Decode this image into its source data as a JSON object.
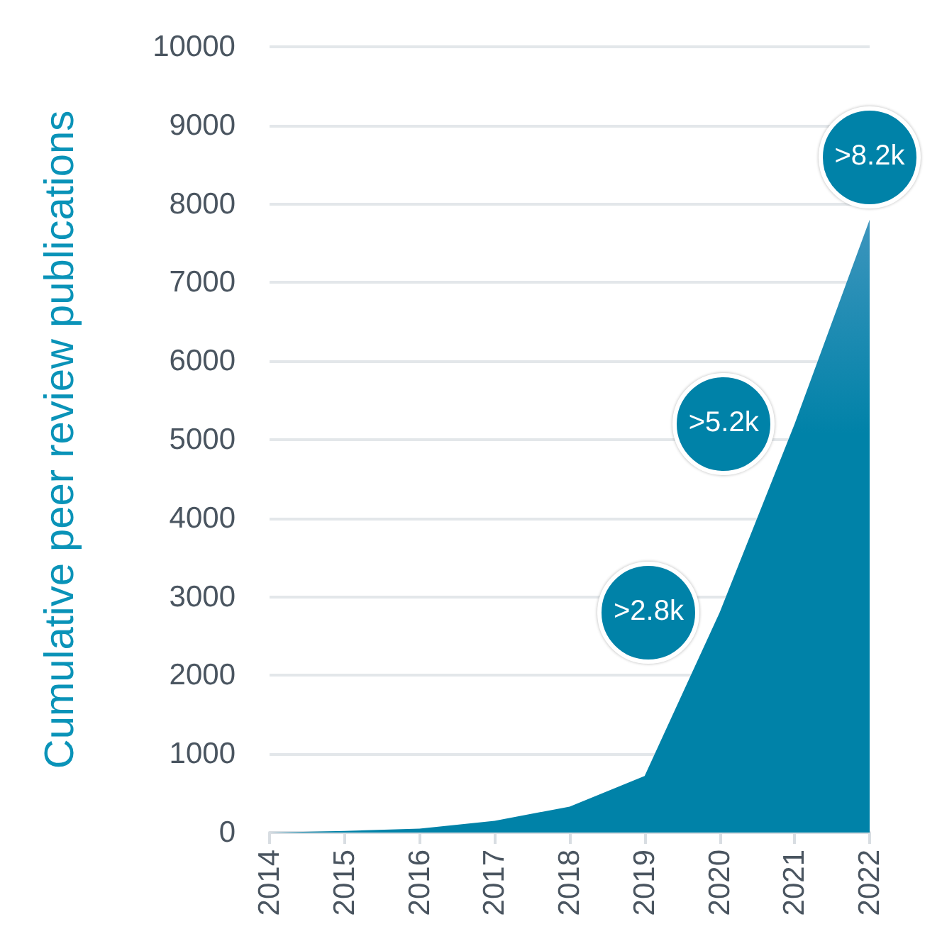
{
  "chart_data": {
    "type": "area",
    "ylabel": "Cumulative peer review publications",
    "categories": [
      "2014",
      "2015",
      "2016",
      "2017",
      "2018",
      "2019",
      "2020",
      "2021",
      "2022"
    ],
    "series": [
      {
        "color": "#0082a8",
        "values": [
          0,
          20,
          50,
          150,
          330,
          720,
          2800,
          5200,
          7800
        ]
      }
    ],
    "ylim": [
      0,
      10000
    ],
    "yticks": [
      0,
      1000,
      2000,
      3000,
      4000,
      5000,
      6000,
      7000,
      8000,
      9000,
      10000
    ],
    "grid": "y",
    "marker": "none",
    "annotations": [
      ">2.8k",
      ">5.2k",
      ">8.2k"
    ]
  }
}
